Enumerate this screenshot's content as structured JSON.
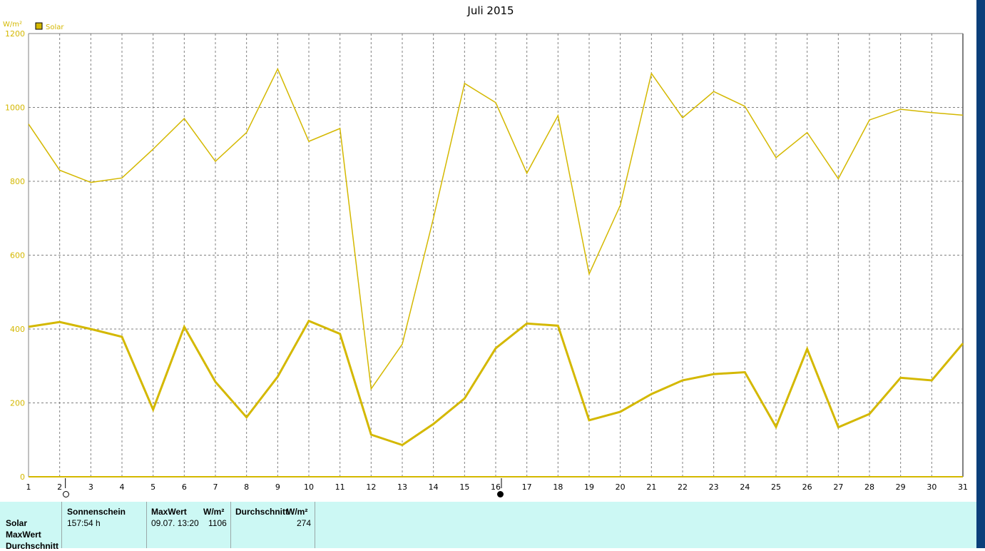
{
  "chart_data": {
    "type": "line",
    "title": "Juli 2015",
    "ylabel": "W/m²",
    "ylim": [
      0,
      1200
    ],
    "yticks": [
      0,
      200,
      400,
      600,
      800,
      1000,
      1200
    ],
    "x": [
      1,
      2,
      3,
      4,
      5,
      6,
      7,
      8,
      9,
      10,
      11,
      12,
      13,
      14,
      15,
      16,
      17,
      18,
      19,
      20,
      21,
      22,
      23,
      24,
      25,
      26,
      27,
      28,
      29,
      30,
      31
    ],
    "legend": "Solar",
    "legend_position": "top-left",
    "grid": true,
    "color": "#d4b800",
    "series": [
      {
        "name": "Solar",
        "role": "MaxWert",
        "values": [
          955,
          830,
          797,
          809,
          887,
          970,
          854,
          932,
          1104,
          908,
          943,
          238,
          359,
          700,
          1065,
          1013,
          822,
          978,
          549,
          735,
          1092,
          972,
          1043,
          1003,
          864,
          932,
          807,
          966,
          995,
          986,
          979
        ]
      },
      {
        "name": "Solar",
        "role": "Durchschnitt",
        "values": [
          406,
          419,
          400,
          379,
          182,
          406,
          257,
          161,
          271,
          422,
          387,
          114,
          86,
          143,
          212,
          348,
          415,
          409,
          153,
          176,
          224,
          261,
          278,
          283,
          135,
          346,
          134,
          170,
          268,
          261,
          361
        ]
      }
    ]
  },
  "markers": {
    "open_circle_day": 2,
    "filled_circle_day": 16
  },
  "table": {
    "row_labels": [
      "Solar",
      "MaxWert",
      "Durchschnitt"
    ],
    "sonnenschein_header": "Sonnenschein",
    "sonnenschein_value": "157:54 h",
    "maxwert_header": "MaxWert",
    "maxwert_unit": "W/m²",
    "maxwert_date": "09.07.  13:20",
    "maxwert_value": "1106",
    "durchschnitt_header": "Durchschnitt",
    "durchschnitt_unit": "W/m²",
    "durchschnitt_value": "274"
  }
}
